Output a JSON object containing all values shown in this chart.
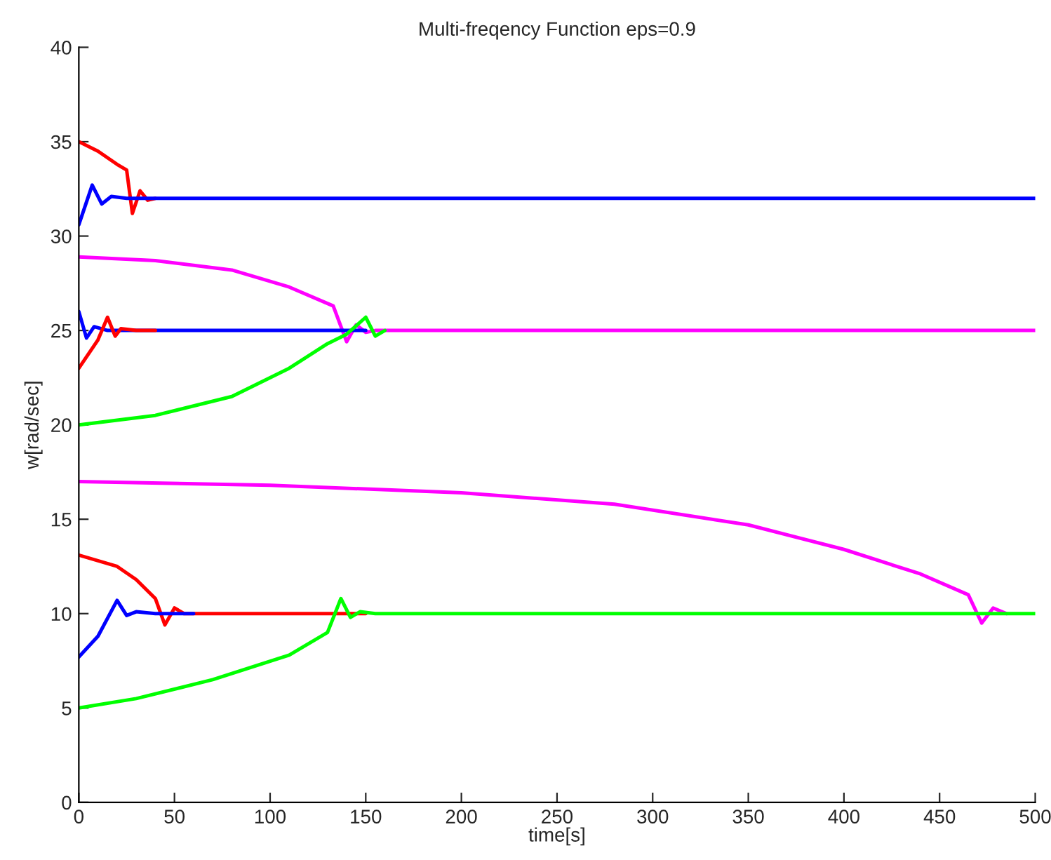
{
  "chart_data": {
    "type": "line",
    "title": "Multi-freqency Function eps=0.9",
    "xlabel": "time[s]",
    "ylabel": "w[rad/sec]",
    "xlim": [
      0,
      500
    ],
    "ylim": [
      0,
      40
    ],
    "xticks": [
      0,
      50,
      100,
      150,
      200,
      250,
      300,
      350,
      400,
      450,
      500
    ],
    "yticks": [
      0,
      5,
      10,
      15,
      20,
      25,
      30,
      35,
      40
    ],
    "grid": false,
    "legend": false,
    "marker": "none",
    "line_style": "solid",
    "series": [
      {
        "color": "#ff0000",
        "x": [
          0,
          10,
          20,
          25,
          28,
          32,
          36,
          40
        ],
        "values": [
          35,
          34.5,
          33.8,
          33.5,
          31.2,
          32.4,
          31.9,
          32
        ]
      },
      {
        "color": "#0000ff",
        "x": [
          0,
          7,
          12,
          17,
          25,
          100,
          200,
          300,
          400,
          500
        ],
        "values": [
          30.6,
          32.7,
          31.7,
          32.1,
          32,
          32,
          32,
          32,
          32,
          32
        ]
      },
      {
        "color": "#ff00ff",
        "x": [
          0,
          40,
          80,
          110,
          133,
          140,
          145,
          150,
          155,
          200,
          300,
          400,
          500
        ],
        "values": [
          28.9,
          28.7,
          28.2,
          27.3,
          26.3,
          24.4,
          25.3,
          24.9,
          25,
          25,
          25,
          25,
          25
        ]
      },
      {
        "color": "#0000ff",
        "x": [
          0,
          4,
          8,
          15,
          50,
          100,
          150
        ],
        "values": [
          26,
          24.6,
          25.2,
          25,
          25,
          25,
          25
        ]
      },
      {
        "color": "#ff0000",
        "x": [
          0,
          10,
          15,
          19,
          22,
          30,
          40
        ],
        "values": [
          23,
          24.5,
          25.7,
          24.7,
          25.1,
          25,
          25
        ]
      },
      {
        "color": "#00ff00",
        "x": [
          0,
          40,
          80,
          110,
          130,
          140,
          150,
          155,
          160
        ],
        "values": [
          20,
          20.5,
          21.5,
          23,
          24.3,
          24.8,
          25.7,
          24.7,
          25
        ]
      },
      {
        "color": "#ff00ff",
        "x": [
          0,
          100,
          200,
          280,
          350,
          400,
          440,
          465,
          472,
          478,
          485
        ],
        "values": [
          17,
          16.8,
          16.4,
          15.8,
          14.7,
          13.4,
          12.1,
          11,
          9.5,
          10.3,
          10
        ]
      },
      {
        "color": "#ff0000",
        "x": [
          0,
          20,
          30,
          40,
          45,
          50,
          55,
          100,
          150
        ],
        "values": [
          13.1,
          12.5,
          11.8,
          10.8,
          9.4,
          10.3,
          10,
          10,
          10
        ]
      },
      {
        "color": "#0000ff",
        "x": [
          0,
          10,
          20,
          25,
          30,
          40,
          60
        ],
        "values": [
          7.7,
          8.8,
          10.7,
          9.9,
          10.1,
          10,
          10
        ]
      },
      {
        "color": "#00ff00",
        "x": [
          0,
          30,
          70,
          110,
          130,
          137,
          142,
          147,
          155,
          250,
          350,
          450,
          500
        ],
        "values": [
          5,
          5.5,
          6.5,
          7.8,
          9,
          10.8,
          9.8,
          10.1,
          10,
          10,
          10,
          10,
          10
        ]
      }
    ]
  }
}
